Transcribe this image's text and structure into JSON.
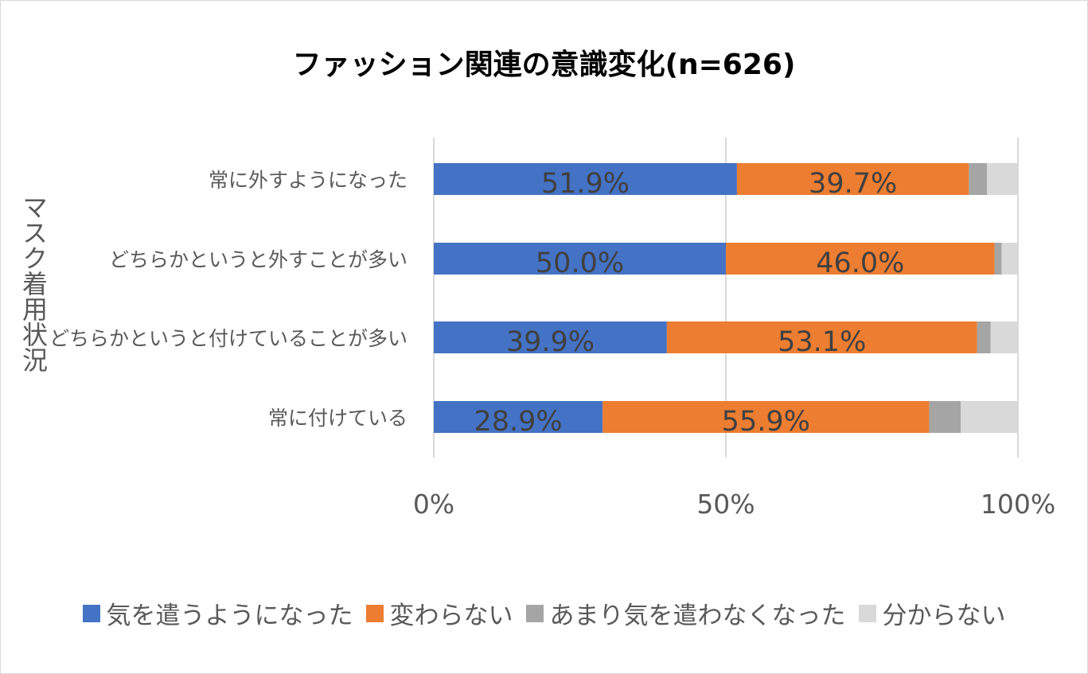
{
  "chart_data": {
    "type": "bar",
    "orientation": "horizontal",
    "stacked": true,
    "title": "ファッション関連の意識変化(n=626)",
    "ylabel": "マスク着用状況",
    "xlabel": "",
    "x_ticks": [
      "0%",
      "50%",
      "100%"
    ],
    "xlim": [
      0,
      100
    ],
    "grid": "vertical",
    "legend_position": "bottom",
    "categories": [
      "常に外すようになった",
      "どちらかというと外すことが多い",
      "どちらかというと付けていることが多い",
      "常に付けている"
    ],
    "series": [
      {
        "name": "気を遣うようになった",
        "color": "#4472C4",
        "values": [
          51.9,
          50.0,
          39.9,
          28.9
        ],
        "labels": [
          "51.9%",
          "50.0%",
          "39.9%",
          "28.9%"
        ]
      },
      {
        "name": "変わらない",
        "color": "#ED7D31",
        "values": [
          39.7,
          46.0,
          53.1,
          55.9
        ],
        "labels": [
          "39.7%",
          "46.0%",
          "53.1%",
          "55.9%"
        ]
      },
      {
        "name": "あまり気を遣わなくなった",
        "color": "#A5A5A5",
        "values": [
          3.1,
          1.2,
          2.3,
          5.4
        ],
        "labels": [
          "",
          "",
          "",
          ""
        ]
      },
      {
        "name": "分からない",
        "color": "#D9D9D9",
        "values": [
          5.3,
          2.8,
          4.7,
          9.8
        ],
        "labels": [
          "",
          "",
          "",
          ""
        ]
      }
    ]
  }
}
